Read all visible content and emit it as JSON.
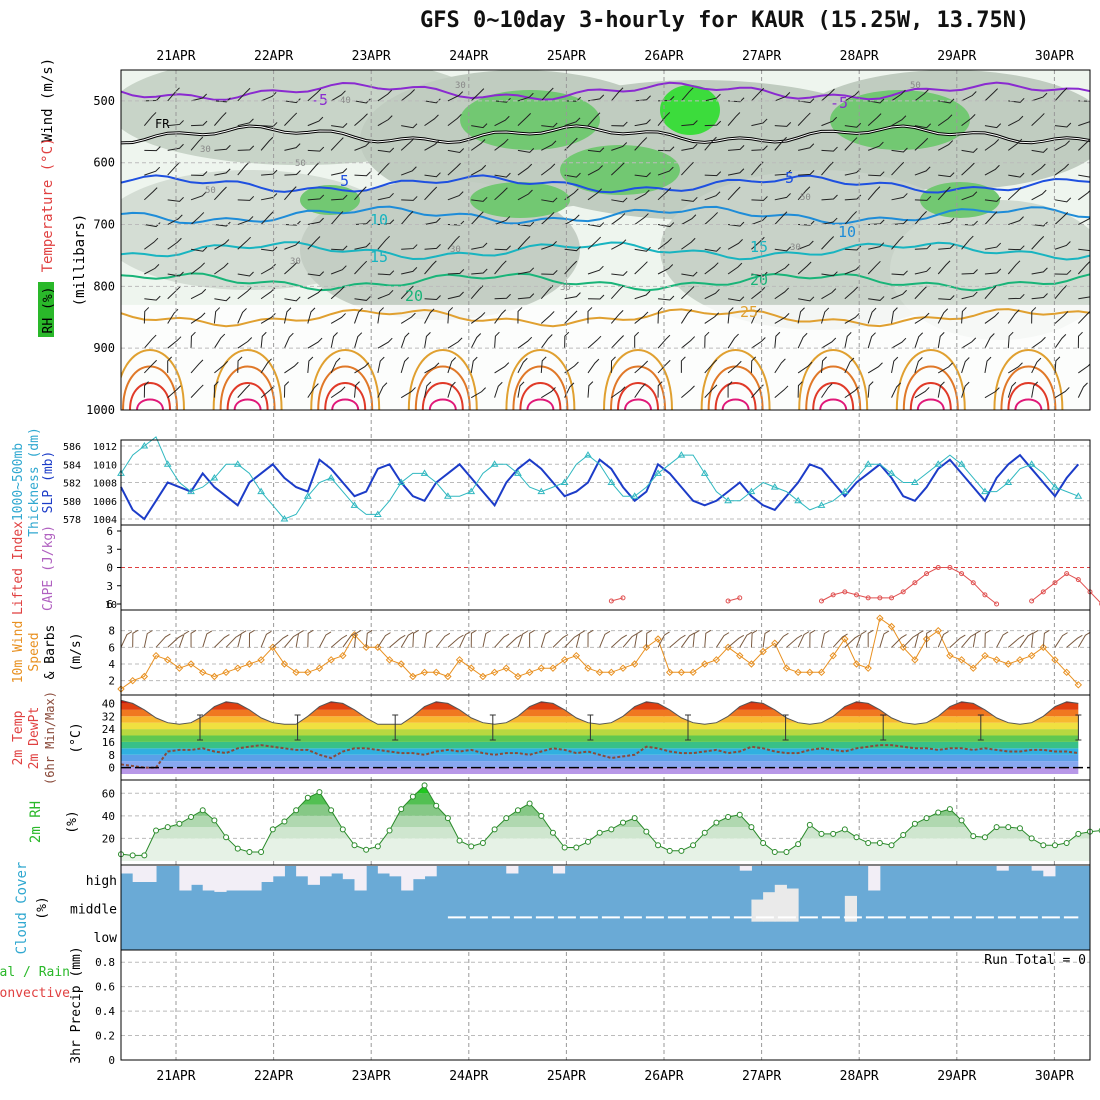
{
  "title": "GFS 0~10day 3-hourly for KAUR (15.25W, 13.75N)",
  "date_labels": [
    "21APR",
    "22APR",
    "23APR",
    "24APR",
    "25APR",
    "26APR",
    "27APR",
    "28APR",
    "29APR",
    "30APR"
  ],
  "chart_data": [
    {
      "panel": "upper_air",
      "type": "heatmap",
      "ylabels": [
        "Wind (m/s)",
        "Temperature (°C)",
        "RH (%)",
        "(millibars)"
      ],
      "pressure_ticks": [
        500,
        600,
        700,
        800,
        900,
        1000
      ],
      "temperature_isotherms": [
        {
          "label": "-5",
          "level": 485
        },
        {
          "label": "FR",
          "level": 555
        },
        {
          "label": "5",
          "level": 635
        },
        {
          "label": "10",
          "level": 685
        },
        {
          "label": "15",
          "level": 742
        },
        {
          "label": "20",
          "level": 792
        },
        {
          "label": "25",
          "level": 850
        }
      ],
      "rh_labels": [
        "30",
        "40",
        "50",
        "60",
        "30"
      ]
    },
    {
      "panel": "thickness_slp",
      "type": "line",
      "ylabels_left": [
        "1000~500mb",
        "Thickness (dm)"
      ],
      "ylabel_right": "SLP (mb)",
      "thickness_ticks": [
        578,
        580,
        582,
        584,
        586
      ],
      "slp_ticks": [
        1004,
        1006,
        1008,
        1010,
        1012
      ],
      "series": [
        {
          "name": "Thickness",
          "color": "#1c3cc8",
          "values": [
            581.5,
            579,
            578,
            580,
            582,
            581.5,
            581,
            583,
            581.5,
            580.5,
            579.5,
            582,
            583,
            584,
            582.5,
            581.5,
            581,
            584.5,
            583.5,
            582,
            580.5,
            581,
            583.5,
            584,
            582,
            580.5,
            580,
            582,
            583,
            584,
            582.5,
            581,
            579.5,
            582,
            583.5,
            584.5,
            583.5,
            582,
            580.5,
            581,
            582,
            584.5,
            583.5,
            581.5,
            580,
            581,
            584,
            583,
            581.5,
            580,
            579.5,
            580,
            581,
            582,
            580.5,
            579.5,
            579,
            580.5,
            582,
            584,
            583.5,
            582,
            580.5,
            582,
            583,
            584,
            582.5,
            580.5,
            580,
            581.5,
            583.5,
            584.5,
            583,
            581.5,
            580,
            582.5,
            584,
            585,
            583.5,
            582,
            580.5,
            582.5,
            584
          ]
        },
        {
          "name": "SLP",
          "color": "#30b8c0",
          "values": [
            1009,
            1011,
            1012,
            1013,
            1010,
            1008,
            1007,
            1007.5,
            1008.5,
            1010,
            1010,
            1009,
            1007,
            1005.5,
            1004,
            1004.5,
            1006.5,
            1008,
            1008.5,
            1007,
            1005.5,
            1004.5,
            1004.5,
            1006,
            1008,
            1009,
            1009,
            1008,
            1006.5,
            1006.5,
            1007,
            1009,
            1010,
            1010,
            1009,
            1007.5,
            1007,
            1007.5,
            1008,
            1010,
            1011,
            1010,
            1008,
            1006.5,
            1006.5,
            1007.5,
            1009,
            1010,
            1011,
            1011,
            1009,
            1007,
            1006,
            1006,
            1007,
            1008,
            1007.5,
            1007,
            1006,
            1005,
            1005.5,
            1006,
            1007,
            1008.5,
            1010,
            1010,
            1009,
            1008,
            1008,
            1009,
            1010,
            1011,
            1010,
            1008.5,
            1007,
            1007,
            1008,
            1009.5,
            1010,
            1009,
            1007.5,
            1007,
            1006.5
          ]
        }
      ]
    },
    {
      "panel": "lifted_index_cape",
      "type": "line",
      "ylabel_left": "Lifted Index",
      "ylabel_right": "CAPE (J/kg)",
      "li_ticks": [
        -6,
        -3,
        0,
        3,
        6
      ],
      "cape_ticks": [
        10
      ],
      "series": [
        {
          "name": "CAPE",
          "color": "#e05050",
          "segments": [
            {
              "start": 42,
              "values": [
                5.5,
                5
              ]
            },
            {
              "start": 52,
              "values": [
                5.5,
                5
              ]
            },
            {
              "start": 60,
              "values": [
                5.5,
                4.5,
                4,
                4.5,
                5,
                5,
                5,
                4,
                2.5,
                1,
                0,
                0,
                1,
                2.5,
                4.5,
                6
              ]
            },
            {
              "start": 78,
              "values": [
                5.5,
                4,
                2.5,
                1,
                2,
                4,
                6
              ]
            }
          ]
        }
      ]
    },
    {
      "panel": "wind10m",
      "type": "line",
      "ylabels": [
        "10m Wind",
        "Speed",
        "& Barbs",
        "(m/s)"
      ],
      "yticks": [
        2,
        4,
        6,
        8
      ],
      "series": [
        {
          "name": "10m speed",
          "color": "#e89020",
          "values": [
            1,
            2,
            2.5,
            5,
            4.5,
            3.5,
            4,
            3,
            2.5,
            3,
            3.5,
            4,
            4.5,
            6,
            4,
            3,
            3,
            3.5,
            4.5,
            5,
            7.5,
            6,
            6,
            4.5,
            4,
            2.5,
            3,
            3,
            2.5,
            4.5,
            3.5,
            2.5,
            3,
            3.5,
            2.5,
            3,
            3.5,
            3.5,
            4.5,
            5,
            3.5,
            3,
            3,
            3.5,
            4,
            6,
            7,
            3,
            3,
            3,
            4,
            4.5,
            6,
            5,
            4,
            5.5,
            6.5,
            3.5,
            3,
            3,
            3,
            5,
            7,
            4,
            3.5,
            9.5,
            8.5,
            6,
            4.5,
            7,
            8,
            5,
            4.5,
            3.5,
            5,
            4.5,
            4,
            4.5,
            5,
            6,
            4.5,
            3,
            1.5
          ]
        }
      ]
    },
    {
      "panel": "temp2m",
      "type": "area",
      "ylabels": [
        "2m Temp",
        "2m DewPt",
        "(6hr Min/Max)",
        "(°C)"
      ],
      "yticks": [
        0,
        8,
        16,
        24,
        32,
        40
      ],
      "series": [
        {
          "name": "2m Temp",
          "values": [
            42,
            40,
            36,
            31,
            28,
            27,
            28,
            32,
            38,
            41,
            40,
            36,
            31,
            28,
            27,
            27,
            32,
            38,
            41,
            40,
            36,
            31,
            27,
            27,
            27,
            32,
            38,
            41,
            40,
            36,
            31,
            28,
            27,
            28,
            32,
            38,
            41,
            40,
            36,
            31,
            28,
            27,
            28,
            32,
            38,
            41,
            40,
            36,
            31,
            28,
            27,
            28,
            32,
            38,
            41,
            40,
            36,
            31,
            28,
            27,
            28,
            32,
            38,
            41,
            40,
            36,
            31,
            28,
            27,
            28,
            32,
            38,
            41,
            40,
            36,
            31,
            28,
            27,
            28,
            32,
            38,
            41,
            40
          ]
        },
        {
          "name": "2m DewPt",
          "color": "#8a4a3a",
          "values": [
            2,
            1,
            0,
            0,
            10,
            11,
            11,
            12,
            10,
            9,
            12,
            13,
            14,
            13,
            12,
            11,
            11,
            8,
            6,
            10,
            12,
            12,
            11,
            10,
            9,
            9,
            8,
            10,
            11,
            10,
            11,
            9,
            8,
            9,
            9,
            8,
            10,
            12,
            11,
            9,
            10,
            8,
            6,
            7,
            8,
            13,
            12,
            10,
            9,
            9,
            10,
            11,
            9,
            10,
            13,
            12,
            10,
            9,
            9,
            11,
            12,
            11,
            10,
            12,
            13,
            14,
            14,
            13,
            12,
            12,
            11,
            12,
            12,
            11,
            12,
            11,
            10,
            10,
            11,
            11,
            10,
            10,
            9
          ]
        }
      ]
    },
    {
      "panel": "rh2m",
      "type": "area",
      "ylabel": "2m RH",
      "yunit": "(%)",
      "yticks": [
        20,
        40,
        60
      ],
      "series": [
        {
          "name": "2m RH",
          "color": "#2a8a2a",
          "values": [
            6,
            5,
            5,
            27,
            30,
            33,
            39,
            45,
            36,
            21,
            11,
            8,
            8,
            28,
            35,
            45,
            56,
            61,
            45,
            28,
            14,
            10,
            13,
            27,
            46,
            57,
            67,
            49,
            38,
            18,
            13,
            16,
            28,
            38,
            45,
            51,
            40,
            25,
            12,
            12,
            17,
            25,
            28,
            34,
            38,
            26,
            14,
            9,
            9,
            14,
            25,
            34,
            39,
            41,
            30,
            16,
            8,
            8,
            15,
            32,
            24,
            24,
            28,
            21,
            16,
            16,
            14,
            23,
            33,
            38,
            43,
            46,
            36,
            22,
            21,
            30,
            30,
            29,
            20,
            14,
            14,
            16,
            24,
            26,
            27
          ]
        }
      ]
    },
    {
      "panel": "cloud",
      "type": "heatmap",
      "ylabels": [
        "Cloud Cover",
        "(%)"
      ],
      "rows": [
        "high",
        "middle",
        "low"
      ]
    },
    {
      "panel": "precip",
      "type": "bar",
      "ylabels": [
        "Total / Rain",
        "Convective",
        "3hr Precip (mm)"
      ],
      "yticks": [
        0,
        0.2,
        0.4,
        0.6,
        0.8
      ],
      "run_total": "Run Total = 0",
      "values": []
    }
  ]
}
